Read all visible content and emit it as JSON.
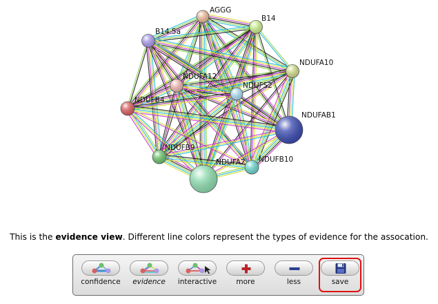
{
  "network": {
    "nodes": [
      {
        "id": "AGGG",
        "label": "AGGG",
        "color": "#e7b998"
      },
      {
        "id": "B14",
        "label": "B14",
        "color": "#c9eb8d"
      },
      {
        "id": "B14.5a",
        "label": "B14.5a",
        "color": "#a99ae8"
      },
      {
        "id": "NDUFA10",
        "label": "NDUFA10",
        "color": "#cfd98a"
      },
      {
        "id": "NDUFA12",
        "label": "NDUFA12",
        "color": "#ebb4b0"
      },
      {
        "id": "NDUFS2",
        "label": "NDUFS2",
        "color": "#a8d8ee"
      },
      {
        "id": "NDUFB4",
        "label": "NDUFB4",
        "color": "#d96060"
      },
      {
        "id": "NDUFAB1",
        "label": "NDUFAB1",
        "color": "#3c4cb0"
      },
      {
        "id": "NDUFB9",
        "label": "NDUFB9",
        "color": "#6ec06e"
      },
      {
        "id": "NDUFA2",
        "label": "NDUFA2",
        "color": "#8fdcb0"
      },
      {
        "id": "NDUFB10",
        "label": "NDUFB10",
        "color": "#6ed3cc"
      }
    ],
    "evidence_colors": [
      "#22bcd4",
      "#d4dc2c",
      "#c43cc4",
      "#222222",
      "#8fd14f"
    ]
  },
  "caption": {
    "prefix": "This is the ",
    "bold": "evidence view",
    "suffix": ". Different line colors represent the types of evidence for the assocation."
  },
  "toolbar": {
    "confidence_label": "confidence",
    "evidence_label": "evidence",
    "interactive_label": "interactive",
    "more_label": "more",
    "less_label": "less",
    "save_label": "save"
  }
}
